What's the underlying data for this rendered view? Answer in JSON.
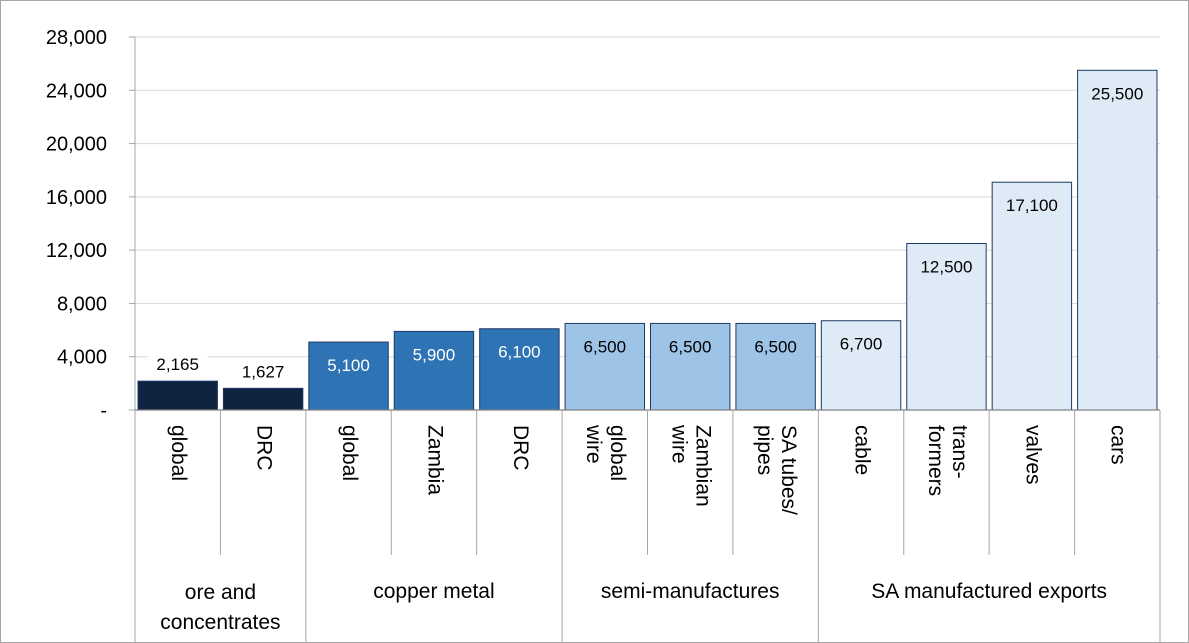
{
  "chart_data": {
    "type": "bar",
    "title": "",
    "xlabel": "",
    "ylabel": "",
    "ylim": [
      0,
      28000
    ],
    "y_ticks": [
      0,
      4000,
      8000,
      12000,
      16000,
      20000,
      24000,
      28000
    ],
    "y_tick_labels": [
      "-",
      "4,000",
      "8,000",
      "12,000",
      "16,000",
      "20,000",
      "24,000",
      "28,000"
    ],
    "grid": true,
    "legend": "none",
    "categories": [
      [
        "global"
      ],
      [
        "DRC"
      ],
      [
        "global"
      ],
      [
        "Zambia"
      ],
      [
        "DRC"
      ],
      [
        "global",
        "wire"
      ],
      [
        "Zambian",
        "wire"
      ],
      [
        "SA tubes/",
        "pipes"
      ],
      [
        "cable"
      ],
      [
        "trans-",
        "formers"
      ],
      [
        "valves"
      ],
      [
        "cars"
      ]
    ],
    "values": [
      2165,
      1627,
      5100,
      5900,
      6100,
      6500,
      6500,
      6500,
      6700,
      12500,
      17100,
      25500
    ],
    "value_labels": [
      "2,165",
      "1,627",
      "5,100",
      "5,900",
      "6,100",
      "6,500",
      "6,500",
      "6,500",
      "6,700",
      "12,500",
      "17,100",
      "25,500"
    ],
    "groups": [
      {
        "lines": [
          "ore and",
          "concentrates"
        ],
        "start": 0,
        "end": 1,
        "color": "#0f2440"
      },
      {
        "lines": [
          "copper metal"
        ],
        "start": 2,
        "end": 4,
        "color": "#2e74b5"
      },
      {
        "lines": [
          "semi-manufactures"
        ],
        "start": 5,
        "end": 7,
        "color": "#9dc3e6"
      },
      {
        "lines": [
          "SA manufactured exports"
        ],
        "start": 8,
        "end": 11,
        "color": "#deebf7"
      }
    ]
  }
}
